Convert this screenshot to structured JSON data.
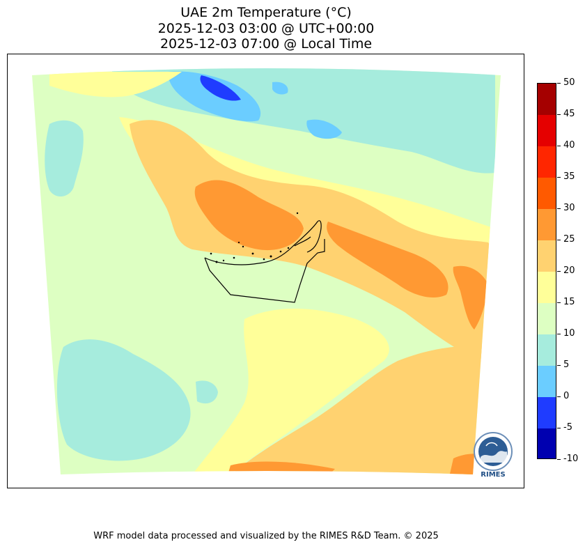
{
  "title": {
    "line1": "UAE 2m Temperature (°C)",
    "line2": "2025-12-03 03:00 @ UTC+00:00",
    "line3": "2025-12-03 07:00 @ Local Time"
  },
  "colorbar": {
    "levels": [
      "50",
      "45",
      "40",
      "35",
      "30",
      "25",
      "20",
      "15",
      "10",
      "5",
      "0",
      "-5",
      "-10"
    ],
    "colors": [
      "#a50000",
      "#e50000",
      "#ff2600",
      "#ff5a00",
      "#ff9933",
      "#ffd270",
      "#ffff99",
      "#ddffc2",
      "#a6ecdd",
      "#6bcdff",
      "#1f3cff",
      "#0000b0"
    ]
  },
  "logo": {
    "text": "RIMES"
  },
  "footer": "WRF model data processed and visualized by the RIMES R&D Team. © 2025"
}
